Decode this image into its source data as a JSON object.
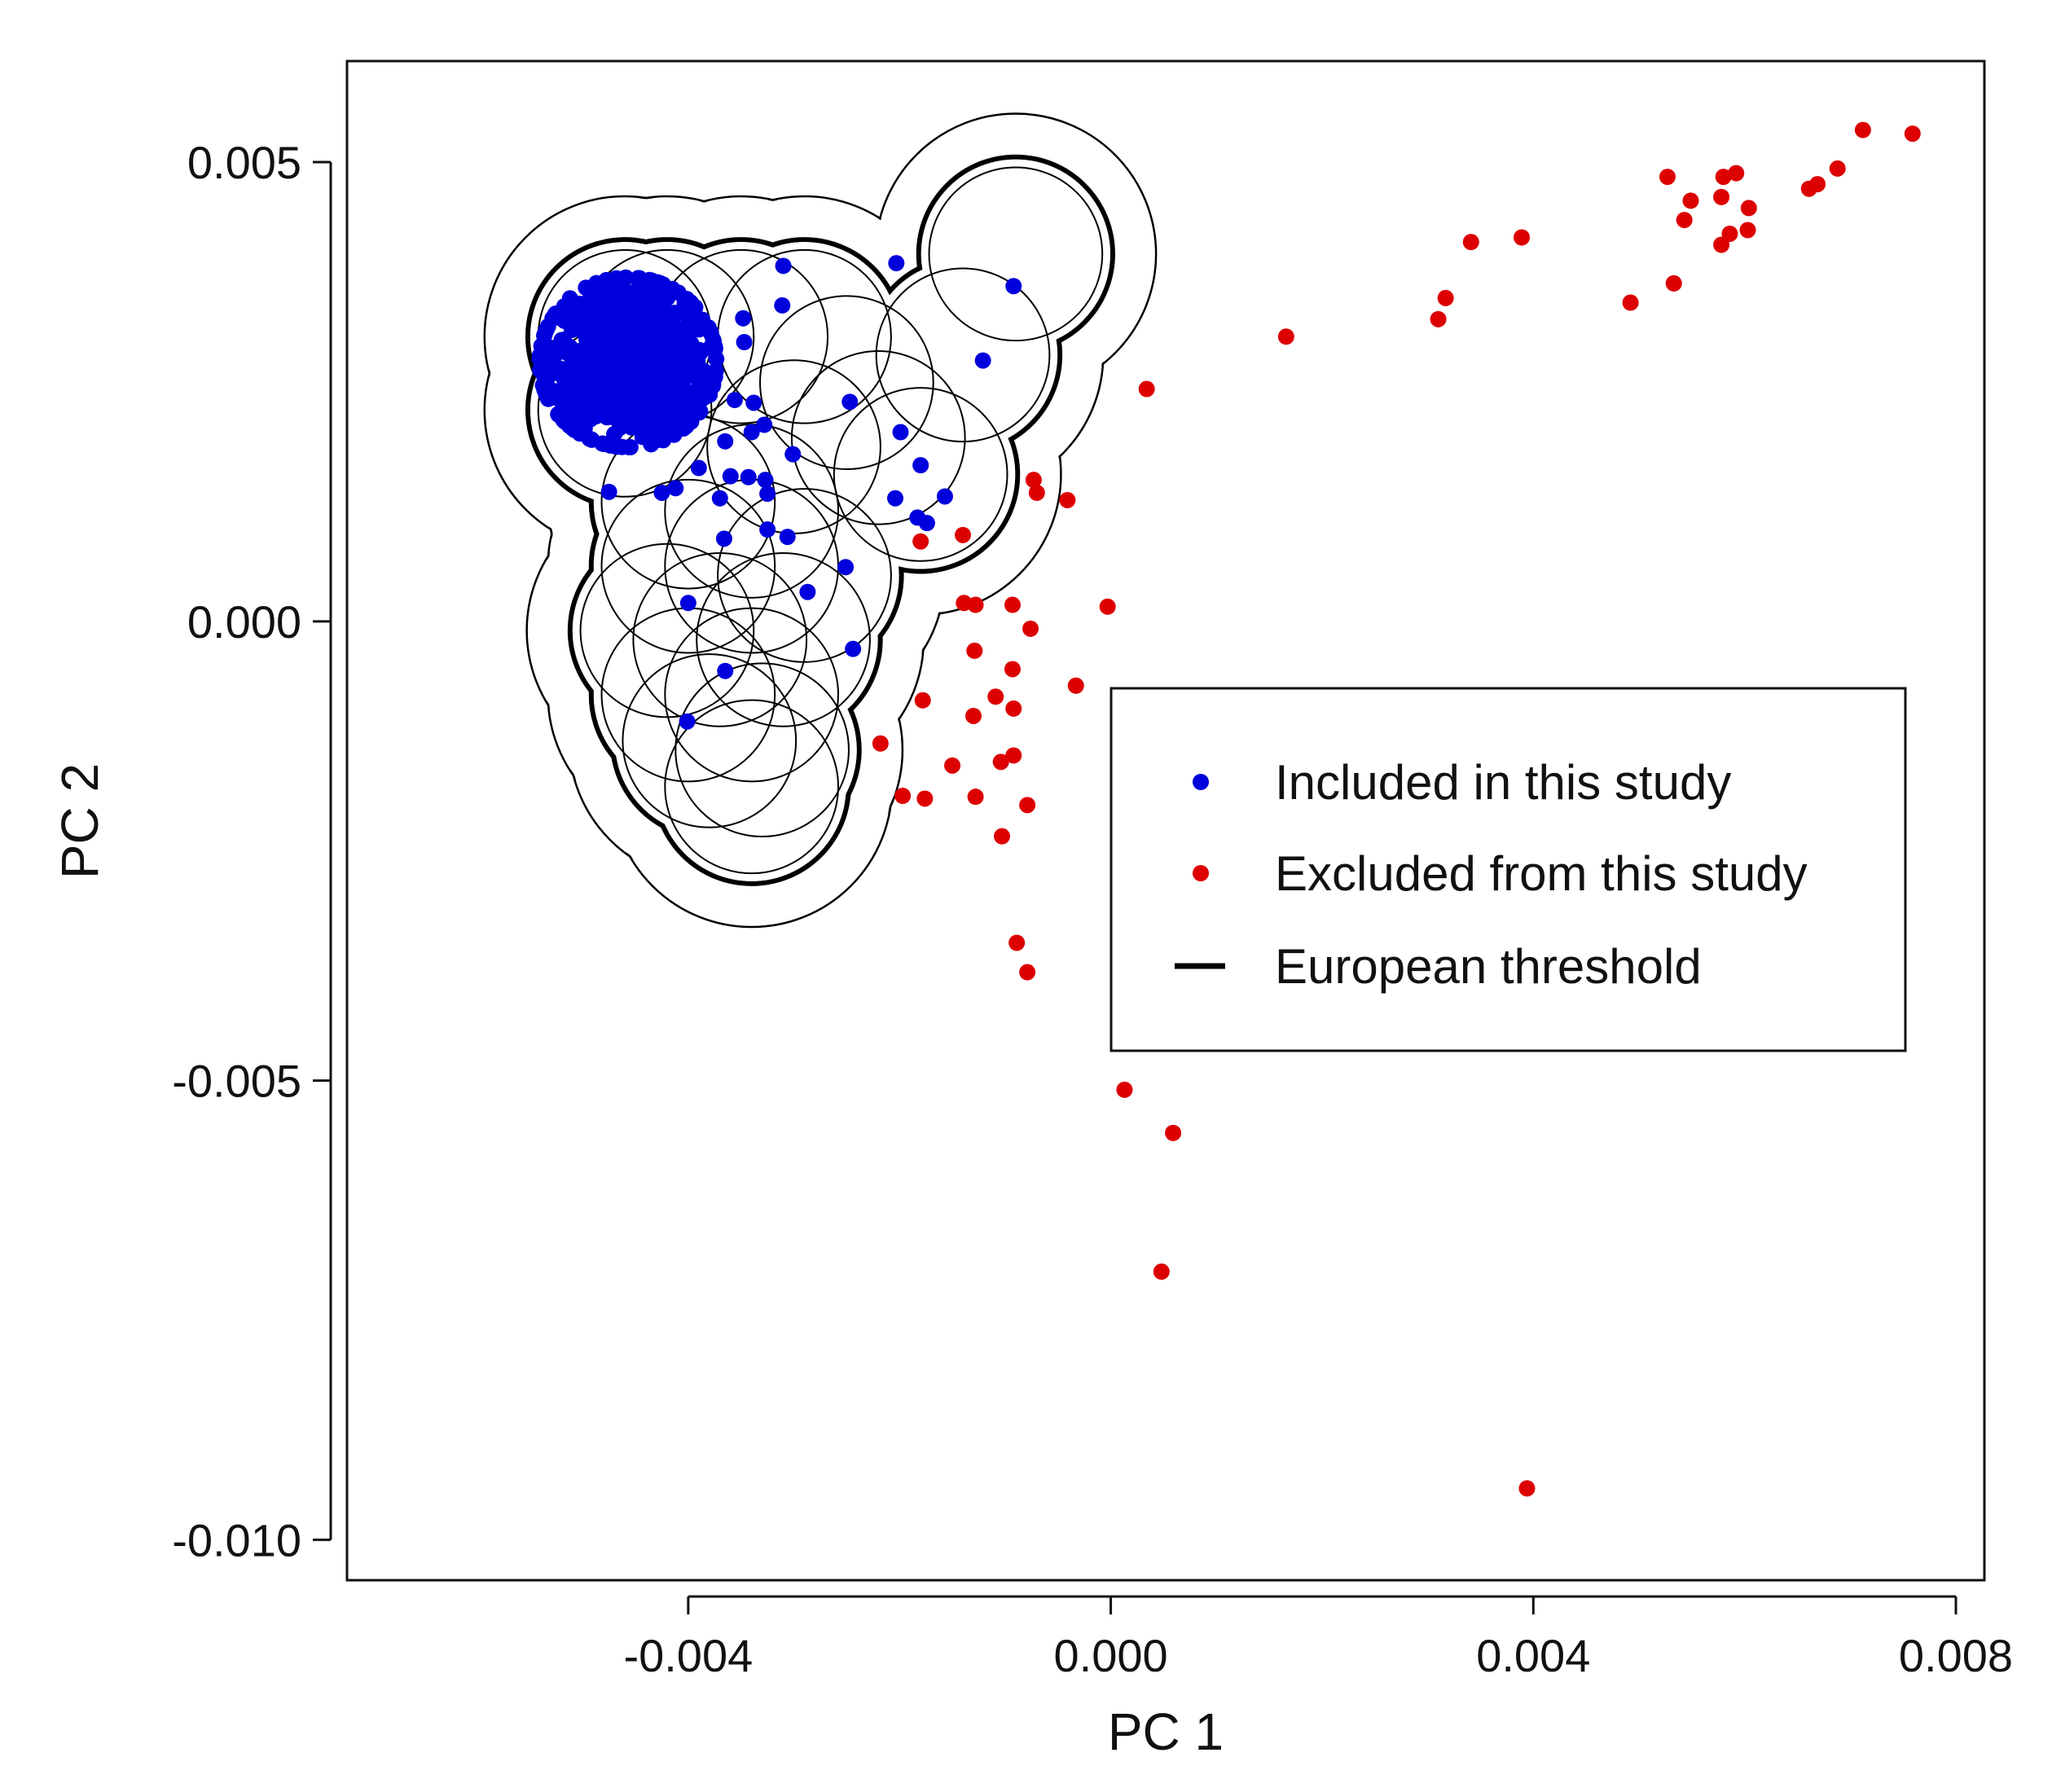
{
  "chart_data": {
    "type": "scatter",
    "title": "",
    "xlabel": "PC 1",
    "ylabel": "PC 2",
    "xlim": [
      -0.00723,
      0.00827
    ],
    "ylim": [
      -0.01044,
      0.0061
    ],
    "grid": false,
    "x_ticks": [
      {
        "value": -0.004,
        "label": "-0.004"
      },
      {
        "value": 0.0,
        "label": "0.000"
      },
      {
        "value": 0.004,
        "label": "0.004"
      },
      {
        "value": 0.008,
        "label": "0.008"
      }
    ],
    "y_ticks": [
      {
        "value": 0.005,
        "label": "0.005"
      },
      {
        "value": 0.0,
        "label": "0.000"
      },
      {
        "value": -0.005,
        "label": "-0.005"
      },
      {
        "value": -0.01,
        "label": "-0.010"
      }
    ],
    "legend": {
      "position": "right",
      "entries": [
        {
          "label": "Included in this study",
          "marker": "point",
          "color": "#0000dd"
        },
        {
          "label": "Excluded from this study",
          "marker": "point",
          "color": "#dd0000"
        },
        {
          "label": "European threshold",
          "marker": "line",
          "color": "#000000"
        }
      ]
    },
    "series": [
      {
        "name": "Included in this study",
        "color": "#0000dd",
        "cluster": {
          "center": [
            -0.00457,
            0.00282
          ],
          "spread": [
            0.00038,
            0.00042
          ],
          "count": 900
        },
        "points": [
          [
            -0.00203,
            0.0039
          ],
          [
            -0.00092,
            0.00365
          ],
          [
            -0.00121,
            0.00284
          ],
          [
            -0.0031,
            0.00387
          ],
          [
            -0.00311,
            0.00344
          ],
          [
            -0.00348,
            0.0033
          ],
          [
            -0.00347,
            0.00304
          ],
          [
            -0.00356,
            0.00241
          ],
          [
            -0.00338,
            0.00238
          ],
          [
            -0.00328,
            0.00214
          ],
          [
            -0.0034,
            0.00206
          ],
          [
            -0.00365,
            0.00196
          ],
          [
            -0.00301,
            0.00182
          ],
          [
            -0.00247,
            0.00239
          ],
          [
            -0.00199,
            0.00206
          ],
          [
            -0.0018,
            0.0017
          ],
          [
            -0.00157,
            0.00136
          ],
          [
            -0.00183,
            0.00113
          ],
          [
            -0.00174,
            0.00107
          ],
          [
            -0.00204,
            0.00134
          ],
          [
            -0.0036,
            0.00158
          ],
          [
            -0.00343,
            0.00157
          ],
          [
            -0.00327,
            0.00154
          ],
          [
            -0.0039,
            0.00167
          ],
          [
            -0.0037,
            0.00134
          ],
          [
            -0.00325,
            0.00139
          ],
          [
            -0.00325,
            0.001
          ],
          [
            -0.00306,
            0.00092
          ],
          [
            -0.00366,
            0.0009
          ],
          [
            -0.00251,
            0.00059
          ],
          [
            -0.00287,
            0.00032
          ],
          [
            -0.004,
            0.0002
          ],
          [
            -0.00244,
            -0.0003
          ],
          [
            -0.00365,
            -0.00054
          ],
          [
            -0.00401,
            -0.00109
          ],
          [
            -0.00475,
            0.00141
          ],
          [
            -0.00425,
            0.0014
          ],
          [
            -0.00412,
            0.00145
          ]
        ]
      },
      {
        "name": "Excluded from this study",
        "color": "#dd0000",
        "points": [
          [
            0.00759,
            0.00531
          ],
          [
            0.00712,
            0.00535
          ],
          [
            0.00688,
            0.00493
          ],
          [
            0.00669,
            0.00476
          ],
          [
            0.00661,
            0.00471
          ],
          [
            0.00527,
            0.00484
          ],
          [
            0.00543,
            0.00437
          ],
          [
            0.00549,
            0.00458
          ],
          [
            0.0058,
            0.00484
          ],
          [
            0.00592,
            0.00488
          ],
          [
            0.00604,
            0.0045
          ],
          [
            0.00578,
            0.00462
          ],
          [
            0.00586,
            0.00422
          ],
          [
            0.00578,
            0.0041
          ],
          [
            0.00603,
            0.00426
          ],
          [
            0.00533,
            0.00368
          ],
          [
            0.00492,
            0.00347
          ],
          [
            0.00389,
            0.00418
          ],
          [
            0.00341,
            0.00413
          ],
          [
            0.00317,
            0.00352
          ],
          [
            0.0031,
            0.00329
          ],
          [
            0.00166,
            0.0031
          ],
          [
            0.00034,
            0.00253
          ],
          [
            -0.00073,
            0.00154
          ],
          [
            -0.0007,
            0.0014
          ],
          [
            -0.00041,
            0.00132
          ],
          [
            -0.0014,
            0.00094
          ],
          [
            -0.0018,
            0.00087
          ],
          [
            -0.00139,
            0.0002
          ],
          [
            -0.00128,
            0.00018
          ],
          [
            -0.00093,
            0.00018
          ],
          [
            -3e-05,
            0.00016
          ],
          [
            -0.00076,
            -8e-05
          ],
          [
            -0.00129,
            -0.00032
          ],
          [
            -0.00093,
            -0.00052
          ],
          [
            -0.00033,
            -0.0007
          ],
          [
            -0.00109,
            -0.00082
          ],
          [
            -0.00092,
            -0.00095
          ],
          [
            -0.0013,
            -0.00103
          ],
          [
            -0.00178,
            -0.00086
          ],
          [
            -0.00218,
            -0.00133
          ],
          [
            -0.00092,
            -0.00146
          ],
          [
            -0.00104,
            -0.00153
          ],
          [
            -0.0015,
            -0.00157
          ],
          [
            -0.00197,
            -0.0019
          ],
          [
            -0.00176,
            -0.00193
          ],
          [
            -0.00128,
            -0.00191
          ],
          [
            -0.00079,
            -0.002
          ],
          [
            -0.00103,
            -0.00234
          ],
          [
            -0.00089,
            -0.0035
          ],
          [
            -0.00079,
            -0.00382
          ],
          [
            0.00013,
            -0.0051
          ],
          [
            0.00059,
            -0.00557
          ],
          [
            0.00048,
            -0.00708
          ],
          [
            0.00394,
            -0.00944
          ]
        ]
      }
    ],
    "threshold_rings": [
      {
        "center": [
          -0.0046,
          0.0031
        ],
        "r": 0.00082
      },
      {
        "center": [
          -0.0042,
          0.0031
        ],
        "r": 0.00082
      },
      {
        "center": [
          -0.0046,
          0.0023
        ],
        "r": 0.00082
      },
      {
        "center": [
          -0.0035,
          0.0031
        ],
        "r": 0.00082
      },
      {
        "center": [
          -0.0029,
          0.0031
        ],
        "r": 0.00082
      },
      {
        "center": [
          -0.0025,
          0.0026
        ],
        "r": 0.00082
      },
      {
        "center": [
          -0.003,
          0.0019
        ],
        "r": 0.00082
      },
      {
        "center": [
          -0.0022,
          0.002
        ],
        "r": 0.00082
      },
      {
        "center": [
          -0.0018,
          0.0016
        ],
        "r": 0.00082
      },
      {
        "center": [
          -0.0014,
          0.0029
        ],
        "r": 0.00082
      },
      {
        "center": [
          -0.0009,
          0.004
        ],
        "r": 0.00082
      },
      {
        "center": [
          -0.004,
          0.0013
        ],
        "r": 0.00082
      },
      {
        "center": [
          -0.0034,
          0.0012
        ],
        "r": 0.00082
      },
      {
        "center": [
          -0.004,
          0.0006
        ],
        "r": 0.00082
      },
      {
        "center": [
          -0.0034,
          0.0006
        ],
        "r": 0.00082
      },
      {
        "center": [
          -0.0029,
          0.0005
        ],
        "r": 0.00082
      },
      {
        "center": [
          -0.0042,
          -0.0001
        ],
        "r": 0.00082
      },
      {
        "center": [
          -0.0037,
          -0.0002
        ],
        "r": 0.00082
      },
      {
        "center": [
          -0.0031,
          -0.0002
        ],
        "r": 0.00082
      },
      {
        "center": [
          -0.004,
          -0.0008
        ],
        "r": 0.00082
      },
      {
        "center": [
          -0.0034,
          -0.0008
        ],
        "r": 0.00082
      },
      {
        "center": [
          -0.0038,
          -0.0013
        ],
        "r": 0.00082
      },
      {
        "center": [
          -0.0033,
          -0.0014
        ],
        "r": 0.00082
      },
      {
        "center": [
          -0.0034,
          -0.0018
        ],
        "r": 0.00082
      }
    ]
  }
}
